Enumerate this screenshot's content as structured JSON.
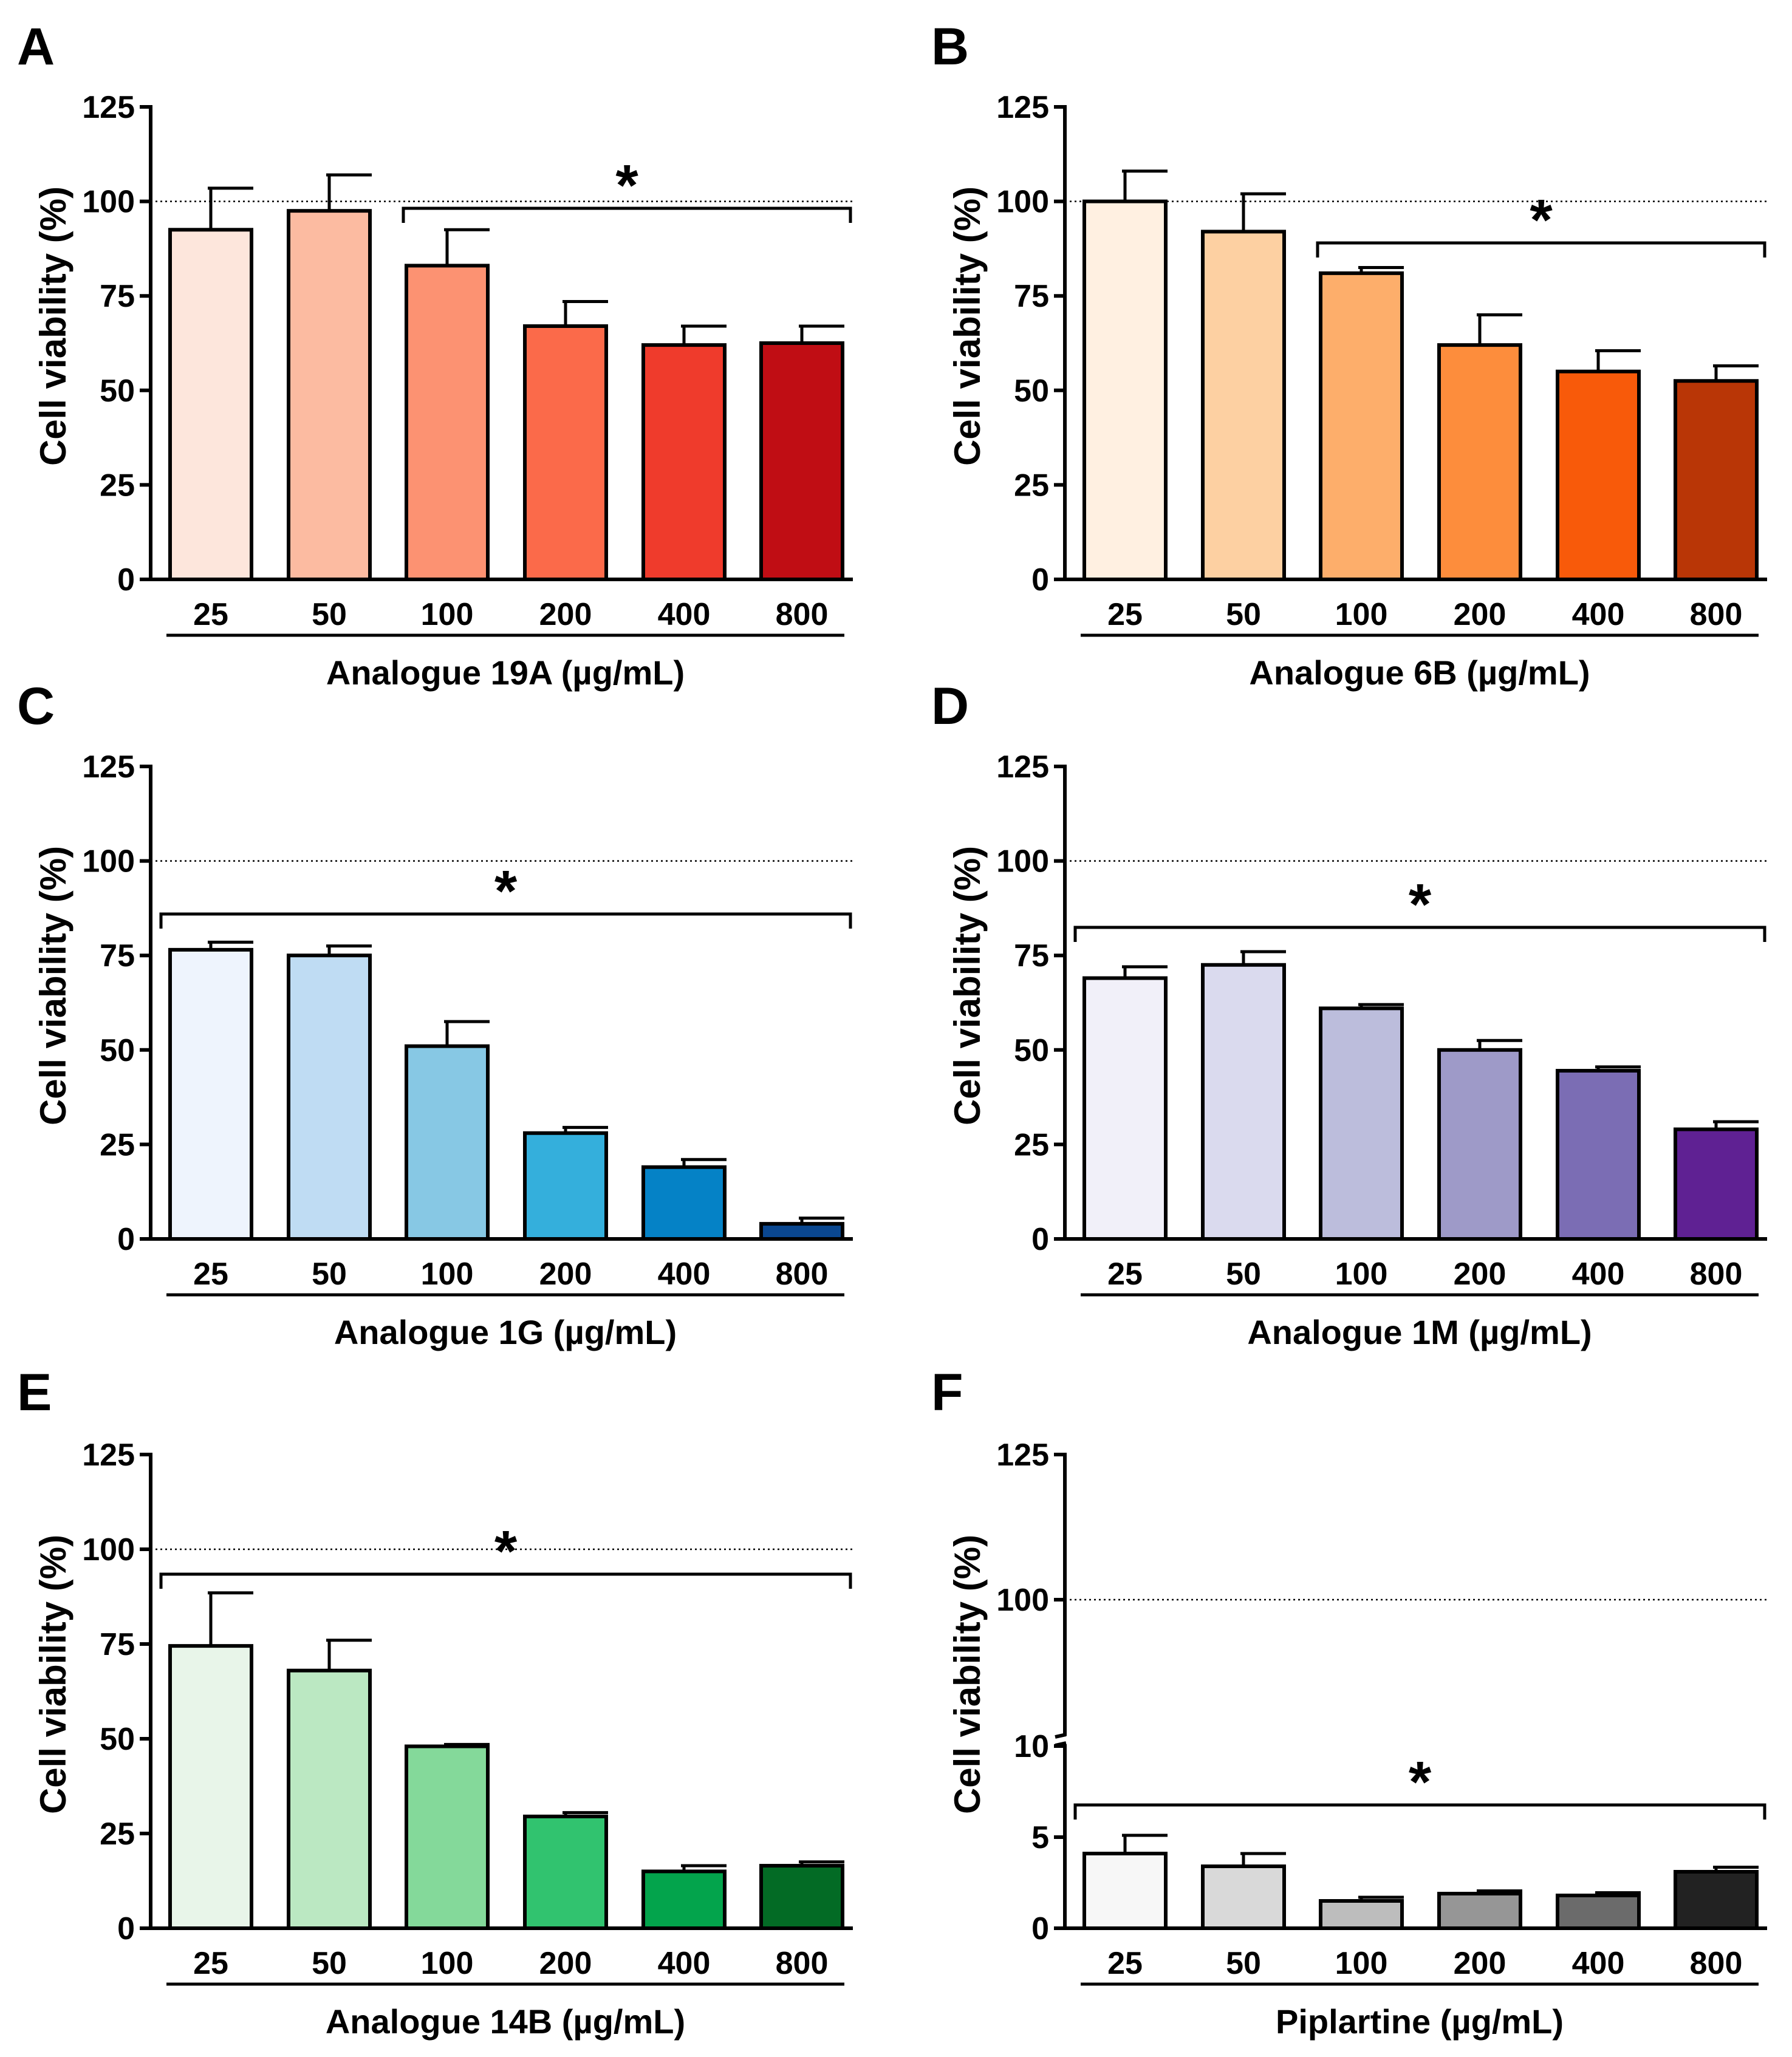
{
  "chart_data": [
    {
      "type": "bar",
      "panel": "A",
      "categories": [
        "25",
        "50",
        "100",
        "200",
        "400",
        "800"
      ],
      "values": [
        92.5,
        97.5,
        83,
        67,
        62,
        62.5
      ],
      "errors": [
        11,
        9.5,
        9.5,
        6.5,
        5,
        4.5
      ],
      "colors": [
        "#fde6dc",
        "#fcbba1",
        "#fc9272",
        "#fb6a4a",
        "#ef3b2c",
        "#c00d14"
      ],
      "ylabel": "Cell viability (%)",
      "xlabel": "Analogue 19A (µg/mL)",
      "ylim": [
        0,
        125
      ],
      "yticks": [
        "0",
        "25",
        "50",
        "75",
        "100",
        "125"
      ],
      "reference_line": 100,
      "significance": {
        "label": "*",
        "from_index": 2,
        "to_index": 5
      }
    },
    {
      "type": "bar",
      "panel": "B",
      "categories": [
        "25",
        "50",
        "100",
        "200",
        "400",
        "800"
      ],
      "values": [
        100,
        92,
        81,
        62,
        55,
        52.5
      ],
      "errors": [
        8,
        10,
        1.5,
        8,
        5.5,
        4
      ],
      "colors": [
        "#fff0e1",
        "#fdd0a2",
        "#fdae6b",
        "#fd8d3c",
        "#f85a0a",
        "#b93606"
      ],
      "ylabel": "Cell viability (%)",
      "xlabel": "Analogue 6B (µg/mL)",
      "ylim": [
        0,
        125
      ],
      "yticks": [
        "0",
        "25",
        "50",
        "75",
        "100",
        "125"
      ],
      "reference_line": 100,
      "significance": {
        "label": "*",
        "from_index": 2,
        "to_index": 5
      }
    },
    {
      "type": "bar",
      "panel": "C",
      "categories": [
        "25",
        "50",
        "100",
        "200",
        "400",
        "800"
      ],
      "values": [
        76.5,
        75,
        51,
        28,
        19,
        4
      ],
      "errors": [
        2,
        2.5,
        6.5,
        1.5,
        2,
        1.5
      ],
      "colors": [
        "#eef4fd",
        "#bfdcf3",
        "#87c8e4",
        "#34afdc",
        "#0582c6",
        "#0a4790"
      ],
      "ylabel": "Cell viability (%)",
      "xlabel": "Analogue 1G (µg/mL)",
      "ylim": [
        0,
        125
      ],
      "yticks": [
        "0",
        "25",
        "50",
        "75",
        "100",
        "125"
      ],
      "reference_line": 100,
      "significance": {
        "label": "*",
        "from_index": 0,
        "to_index": 5
      }
    },
    {
      "type": "bar",
      "panel": "D",
      "categories": [
        "25",
        "50",
        "100",
        "200",
        "400",
        "800"
      ],
      "values": [
        69,
        72.5,
        61,
        50,
        44.5,
        29
      ],
      "errors": [
        3,
        3.5,
        1,
        2.5,
        1,
        2
      ],
      "colors": [
        "#f1f0f9",
        "#dadaee",
        "#bcbddc",
        "#9e9ac8",
        "#7b6db4",
        "#5f2193"
      ],
      "ylabel": "Cell viability (%)",
      "xlabel": "Analogue 1M (µg/mL)",
      "ylim": [
        0,
        125
      ],
      "yticks": [
        "0",
        "25",
        "50",
        "75",
        "100",
        "125"
      ],
      "reference_line": 100,
      "significance": {
        "label": "*",
        "from_index": 0,
        "to_index": 5
      }
    },
    {
      "type": "bar",
      "panel": "E",
      "categories": [
        "25",
        "50",
        "100",
        "200",
        "400",
        "800"
      ],
      "values": [
        74.5,
        68,
        48,
        29.5,
        15,
        16.5
      ],
      "errors": [
        14,
        8,
        0.5,
        1,
        1.5,
        1
      ],
      "colors": [
        "#e8f5e9",
        "#bbe8c2",
        "#84d99a",
        "#31c36f",
        "#03a44c",
        "#036b25"
      ],
      "ylabel": "Cell viability (%)",
      "xlabel": "Analogue 14B (µg/mL)",
      "ylim": [
        0,
        125
      ],
      "yticks": [
        "0",
        "25",
        "50",
        "75",
        "100",
        "125"
      ],
      "reference_line": 100,
      "significance": {
        "label": "*",
        "from_index": 0,
        "to_index": 5
      }
    },
    {
      "type": "bar",
      "panel": "F",
      "categories": [
        "25",
        "50",
        "100",
        "200",
        "400",
        "800"
      ],
      "values": [
        4.1,
        3.4,
        1.5,
        1.9,
        1.8,
        3.1
      ],
      "errors": [
        1,
        0.7,
        0.2,
        0.15,
        0.15,
        0.25
      ],
      "colors": [
        "#f7f7f7",
        "#d9d9d9",
        "#bdbdbd",
        "#969696",
        "#6b6b6b",
        "#222222"
      ],
      "ylabel": "Cell viability (%)",
      "xlabel": "Piplartine (µg/mL)",
      "ylim": [
        0,
        125
      ],
      "axis_break": [
        10,
        100
      ],
      "yticks": [
        "0",
        "5",
        "10",
        "100",
        "125"
      ],
      "reference_line": 100,
      "significance": {
        "label": "*",
        "from_index": 0,
        "to_index": 5
      }
    }
  ]
}
